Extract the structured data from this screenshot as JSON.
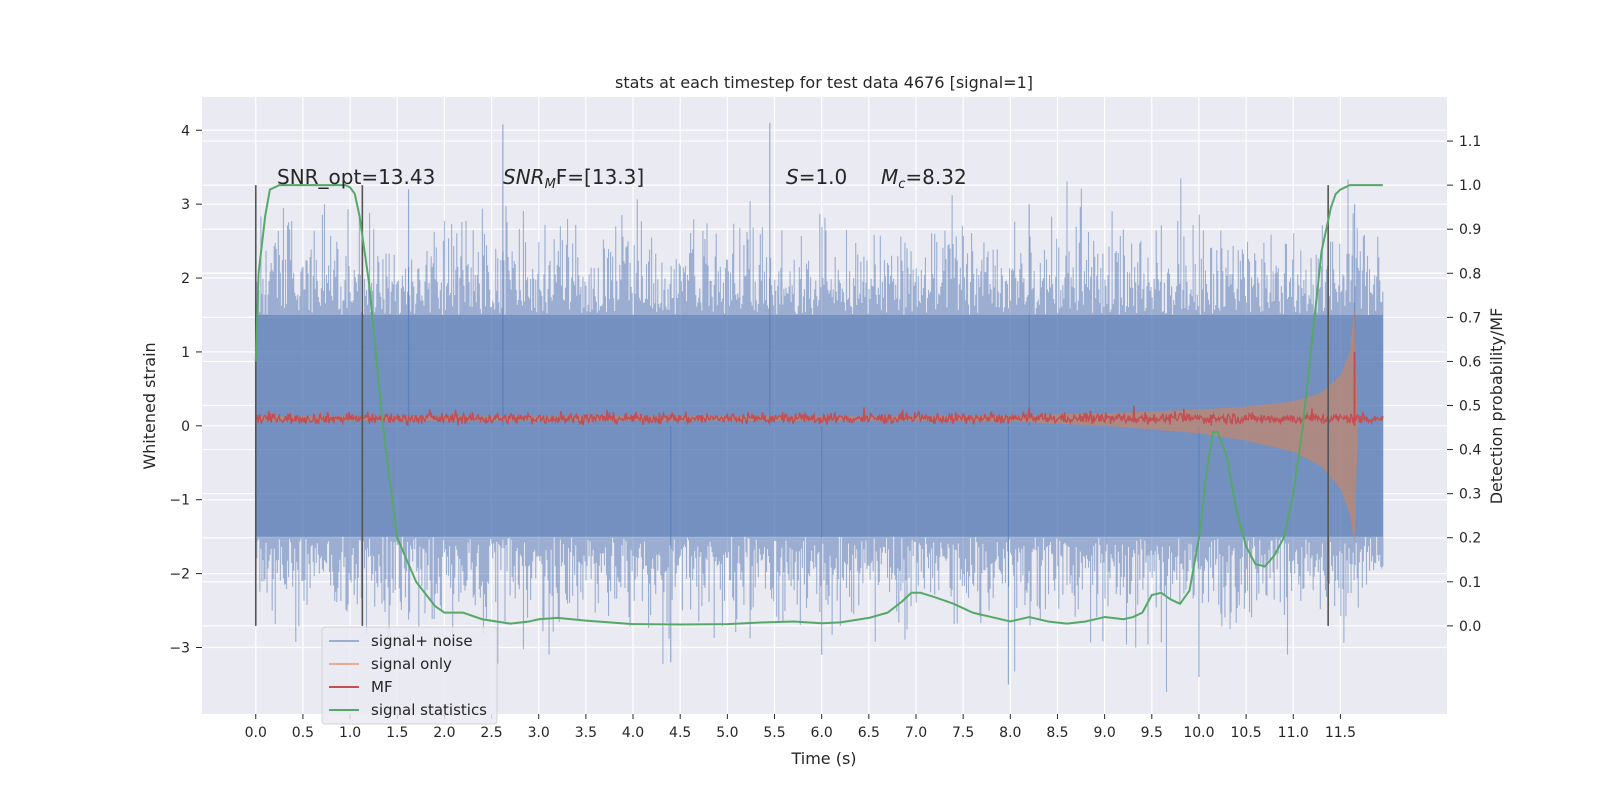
{
  "chart_data": {
    "type": "line",
    "title": "stats at each timestep for test data 4676 [signal=1]",
    "xlabel": "Time (s)",
    "ylabel": "Whitened strain",
    "y2label": "Detection probability/MF",
    "xlim": [
      -0.57,
      12.63
    ],
    "ylim": [
      -3.9,
      4.45
    ],
    "y2lim": [
      -0.2,
      1.2
    ],
    "xticks": [
      0.0,
      0.5,
      1.0,
      1.5,
      2.0,
      2.5,
      3.0,
      3.5,
      4.0,
      4.5,
      5.0,
      5.5,
      6.0,
      6.5,
      7.0,
      7.5,
      8.0,
      8.5,
      9.0,
      9.5,
      10.0,
      10.5,
      11.0,
      11.5
    ],
    "xtick_labels": [
      "0.0",
      "0.5",
      "1.0",
      "1.5",
      "2.0",
      "2.5",
      "3.0",
      "3.5",
      "4.0",
      "4.5",
      "5.0",
      "5.5",
      "6.0",
      "6.5",
      "7.0",
      "7.5",
      "8.0",
      "8.5",
      "9.0",
      "9.5",
      "10.0",
      "10.5",
      "11.0",
      "11.5"
    ],
    "yticks": [
      4,
      3,
      2,
      1,
      0,
      -1,
      -2,
      -3
    ],
    "ytick_labels": [
      "4",
      "3",
      "2",
      "1",
      "0",
      "−1",
      "−2",
      "−3"
    ],
    "y2ticks": [
      1.1,
      1.0,
      0.9,
      0.8,
      0.7,
      0.6,
      0.5,
      0.4,
      0.3,
      0.2,
      0.1,
      0.0
    ],
    "y2tick_labels": [
      "1.1",
      "1.0",
      "0.9",
      "0.8",
      "0.7",
      "0.6",
      "0.5",
      "0.4",
      "0.3",
      "0.2",
      "0.1",
      "0.0"
    ],
    "grid": true,
    "legend_position": "lower-left",
    "colors": {
      "signal_noise": "#4c72b0",
      "signal_only": "#dd8452",
      "mf": "#c44e52",
      "statistics": "#55a868",
      "vline": "#555555",
      "background": "#eaeaf2"
    },
    "series": [
      {
        "name": "signal+ noise",
        "axis": "left",
        "band_abs_max": 1.5,
        "spike_max": 4.08,
        "spike_min": -3.6,
        "x_range": [
          0.0,
          11.95
        ]
      },
      {
        "name": "signal only",
        "axis": "left",
        "x_range": [
          0.0,
          11.95
        ],
        "envelope": {
          "x": [
            0,
            7,
            8,
            9,
            10,
            10.5,
            11,
            11.3,
            11.5,
            11.6,
            11.65,
            11.68
          ],
          "upper": [
            0.13,
            0.13,
            0.14,
            0.17,
            0.22,
            0.26,
            0.33,
            0.45,
            0.68,
            1.0,
            1.6,
            0.2
          ],
          "lower": [
            0.07,
            0.07,
            0.06,
            0.0,
            -0.1,
            -0.2,
            -0.35,
            -0.55,
            -0.85,
            -1.2,
            -1.6,
            -0.2
          ]
        }
      },
      {
        "name": "MF",
        "axis": "left",
        "level": 0.1,
        "spread": 0.08,
        "peak": {
          "x": 11.65,
          "y": 1.0
        },
        "x_range": [
          0.0,
          11.95
        ]
      },
      {
        "name": "signal statistics",
        "axis": "right",
        "x": [
          0,
          0.03,
          0.1,
          0.15,
          0.25,
          0.4,
          0.6,
          0.85,
          0.95,
          1.0,
          1.05,
          1.1,
          1.2,
          1.35,
          1.5,
          1.7,
          1.9,
          2.0,
          2.2,
          2.4,
          2.7,
          2.9,
          3.0,
          3.2,
          3.5,
          4.0,
          4.5,
          5.0,
          5.4,
          5.7,
          6.0,
          6.2,
          6.5,
          6.7,
          6.85,
          6.95,
          7.05,
          7.2,
          7.4,
          7.6,
          7.8,
          8.0,
          8.2,
          8.4,
          8.6,
          8.8,
          9.0,
          9.2,
          9.3,
          9.4,
          9.5,
          9.6,
          9.7,
          9.8,
          9.9,
          10.0,
          10.1,
          10.15,
          10.2,
          10.3,
          10.4,
          10.5,
          10.6,
          10.7,
          10.8,
          10.9,
          11.0,
          11.1,
          11.2,
          11.3,
          11.4,
          11.45,
          11.5,
          11.6,
          11.7,
          11.85,
          11.95
        ],
        "y": [
          0.6,
          0.8,
          0.93,
          0.99,
          1.0,
          1.0,
          1.0,
          1.0,
          1.0,
          0.995,
          0.98,
          0.93,
          0.78,
          0.45,
          0.2,
          0.1,
          0.045,
          0.03,
          0.03,
          0.015,
          0.005,
          0.01,
          0.015,
          0.018,
          0.012,
          0.004,
          0.003,
          0.004,
          0.008,
          0.01,
          0.006,
          0.008,
          0.018,
          0.03,
          0.055,
          0.075,
          0.075,
          0.065,
          0.05,
          0.03,
          0.02,
          0.01,
          0.02,
          0.01,
          0.005,
          0.01,
          0.02,
          0.015,
          0.02,
          0.03,
          0.07,
          0.075,
          0.06,
          0.05,
          0.08,
          0.2,
          0.38,
          0.44,
          0.44,
          0.38,
          0.26,
          0.18,
          0.14,
          0.135,
          0.16,
          0.2,
          0.3,
          0.45,
          0.65,
          0.85,
          0.95,
          0.98,
          0.99,
          1.0,
          1.0,
          1.0,
          1.0
        ]
      }
    ],
    "vlines": [
      0.0,
      1.13,
      11.37
    ],
    "annotations": [
      {
        "text": "SNR_opt=13.43",
        "math": false
      },
      {
        "text": "SNR",
        "sub": "M",
        "suffix": "F=[13.3]",
        "math": true
      },
      {
        "text": "S",
        "suffix": "=1.0",
        "math": true
      },
      {
        "text": "M",
        "sub": "c",
        "suffix": "=8.32",
        "math": true
      }
    ]
  }
}
